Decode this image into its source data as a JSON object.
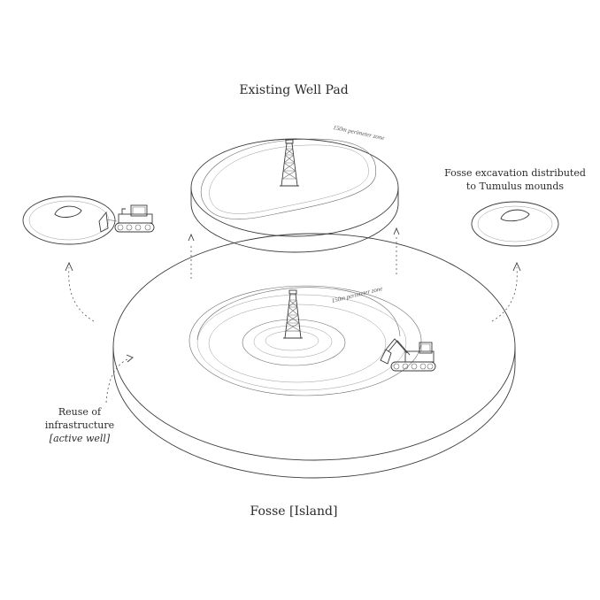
{
  "labels": {
    "top_title": "Existing Well Pad",
    "bottom_title": "Fosse [Island]",
    "perimeter_top": "150m perimeter zone",
    "perimeter_bottom": "150m perimeter zone",
    "right_note_line1": "Fosse excavation distributed",
    "right_note_line2": "to Tumulus mounds",
    "left_note_line1": "Reuse of",
    "left_note_line2": "infrastructure",
    "left_note_line3": "[active well]"
  },
  "colors": {
    "stroke": "#3a3a3a",
    "background": "#ffffff"
  },
  "icons": [
    "drilling-rig-icon",
    "bulldozer-icon",
    "excavator-icon"
  ]
}
